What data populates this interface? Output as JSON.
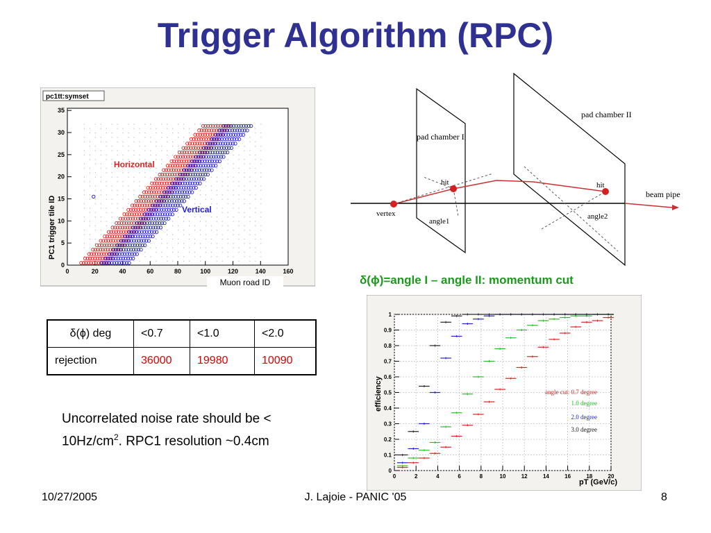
{
  "title": "Trigger Algorithm (RPC)",
  "plot1": {
    "box_title": "pc1tt:symset",
    "ylabel": "PC1 trigger tile ID",
    "xlabel": "Muon road ID",
    "label_horizontal": "Horizontal",
    "label_vertical": "Vertical",
    "x_ticks": [
      "0",
      "20",
      "40",
      "60",
      "80",
      "100",
      "120",
      "140",
      "160"
    ],
    "y_ticks": [
      "0",
      "5",
      "10",
      "15",
      "20",
      "25",
      "30",
      "35"
    ],
    "colors": {
      "horizontal": "#e02020",
      "vertical": "#2020d0"
    }
  },
  "diagram": {
    "pad_chamber_1": "pad chamber I",
    "pad_chamber_2": "pad chamber II",
    "hit1": "hit",
    "hit2": "hit",
    "vertex": "vertex",
    "angle1": "angle1",
    "angle2": "angle2",
    "beam_pipe": "beam pipe"
  },
  "caption": "δ(ϕ)=angle I – angle II: momentum cut",
  "table": {
    "header": [
      "δ(ϕ) deg",
      "<0.7",
      "<1.0",
      "<2.0"
    ],
    "row_label": "rejection",
    "values": [
      "36000",
      "19980",
      "10090"
    ]
  },
  "noise_text": {
    "line1": "Uncorrelated noise rate should be <",
    "line2a": "10Hz/cm",
    "line2sup": "2",
    "line2b": ".  RPC1 resolution ~0.4cm"
  },
  "chart_data": {
    "type": "scatter",
    "xlabel": "pT (GeV/c)",
    "ylabel": "efficiency",
    "xlim": [
      0,
      20
    ],
    "ylim": [
      0,
      1
    ],
    "x_ticks": [
      "0",
      "2",
      "4",
      "6",
      "8",
      "10",
      "12",
      "14",
      "16",
      "18",
      "20"
    ],
    "y_ticks": [
      "0",
      "0.1",
      "0.2",
      "0.3",
      "0.4",
      "0.5",
      "0.6",
      "0.7",
      "0.8",
      "0.9",
      "1"
    ],
    "x": [
      0.75,
      1.75,
      2.75,
      3.75,
      4.75,
      5.75,
      6.75,
      7.75,
      8.75,
      9.75,
      10.75,
      11.75,
      12.75,
      13.75,
      14.75,
      15.75,
      16.75,
      17.75,
      18.75,
      19.75
    ],
    "series": [
      {
        "name": "angle cut: 0.7 degree",
        "color": "#e02020",
        "values": [
          0.02,
          0.05,
          0.08,
          0.11,
          0.15,
          0.22,
          0.29,
          0.36,
          0.44,
          0.52,
          0.59,
          0.66,
          0.73,
          0.79,
          0.84,
          0.88,
          0.92,
          0.95,
          0.96,
          0.98
        ]
      },
      {
        "name": "1.0 degree",
        "color": "#20c020",
        "values": [
          0.03,
          0.08,
          0.13,
          0.18,
          0.28,
          0.37,
          0.49,
          0.6,
          0.7,
          0.78,
          0.85,
          0.9,
          0.93,
          0.96,
          0.97,
          0.98,
          0.99,
          0.99,
          1.0,
          1.0
        ]
      },
      {
        "name": "2.0 degree",
        "color": "#2020d0",
        "values": [
          0.05,
          0.14,
          0.3,
          0.5,
          0.72,
          0.86,
          0.94,
          0.97,
          0.99,
          1.0,
          1.0,
          1.0,
          1.0,
          1.0,
          1.0,
          1.0,
          1.0,
          1.0,
          1.0,
          1.0
        ]
      },
      {
        "name": "3.0 degree",
        "color": "#202020",
        "values": [
          0.1,
          0.25,
          0.54,
          0.8,
          0.95,
          0.99,
          1.0,
          1.0,
          1.0,
          1.0,
          1.0,
          1.0,
          1.0,
          1.0,
          1.0,
          1.0,
          1.0,
          1.0,
          1.0,
          1.0
        ]
      }
    ]
  },
  "footer": {
    "date": "10/27/2005",
    "author": "J. Lajoie - PANIC '05",
    "page": "8"
  }
}
